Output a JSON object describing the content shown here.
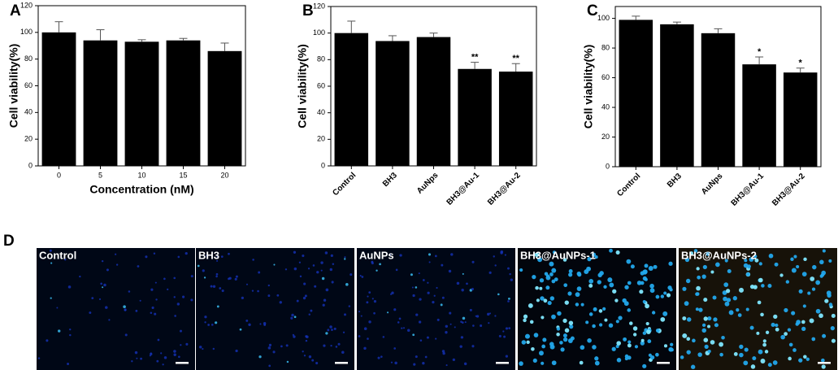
{
  "chart_data": [
    {
      "type": "bar",
      "panel_label": "A",
      "xlabel": "Concentration (nM)",
      "ylabel": "Cell viability(%)",
      "categories": [
        "0",
        "5",
        "10",
        "15",
        "20"
      ],
      "values": [
        100,
        94,
        93,
        94,
        86
      ],
      "errors": [
        8,
        8,
        1.5,
        1.5,
        6
      ],
      "color": "#000000",
      "ylim": [
        0,
        120
      ],
      "yticks": [
        0,
        20,
        40,
        60,
        80,
        100,
        120
      ]
    },
    {
      "type": "bar",
      "panel_label": "B",
      "ylabel": "Cell viability(%)",
      "categories": [
        "Control",
        "BH3",
        "AuNps",
        "BH3@Au-1",
        "BH3@Au-2"
      ],
      "values": [
        100,
        94,
        97,
        73,
        71
      ],
      "errors": [
        9,
        4,
        3,
        5,
        6
      ],
      "significance": [
        null,
        null,
        null,
        "**",
        "**"
      ],
      "color": "#000000",
      "ylim": [
        0,
        120
      ],
      "yticks": [
        0,
        20,
        40,
        60,
        80,
        100,
        120
      ]
    },
    {
      "type": "bar",
      "panel_label": "C",
      "ylabel": "Cell viability(%)",
      "categories": [
        "Control",
        "BH3",
        "AuNps",
        "BH3@Au-1",
        "BH3@Au-2"
      ],
      "values": [
        99,
        96,
        90,
        69,
        63.5
      ],
      "errors": [
        2.5,
        1.5,
        3,
        5,
        3
      ],
      "significance": [
        null,
        null,
        null,
        "*",
        "*"
      ],
      "color": "#000000",
      "ylim": [
        0,
        108
      ],
      "yticks": [
        0,
        20,
        40,
        60,
        80,
        100
      ]
    }
  ],
  "image_panel": {
    "label": "D",
    "images": [
      "Control",
      "BH3",
      "AuNPs",
      "BH3@AuNPs-1",
      "BH3@AuNPs-2"
    ]
  }
}
